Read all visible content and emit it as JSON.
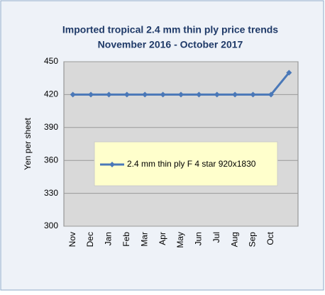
{
  "chart_data": {
    "type": "line",
    "title": "Imported tropical 2.4 mm thin ply price trends",
    "subtitle": "November 2016 - October 2017",
    "y_label": "Yen per sheet",
    "categories": [
      "Nov",
      "Dec",
      "Jan",
      "Feb",
      "Mar",
      "Apr",
      "May",
      "Jun",
      "Jul",
      "Aug",
      "Sep",
      "Oct",
      null
    ],
    "series": [
      {
        "name": "2.4 mm thin ply F 4 star 920x1830",
        "color": "#4a78b8",
        "values": [
          420,
          420,
          420,
          420,
          420,
          420,
          420,
          420,
          420,
          420,
          420,
          420,
          440
        ]
      }
    ],
    "ylim": [
      300,
      450
    ],
    "yticks": [
      300,
      330,
      360,
      390,
      420,
      450
    ],
    "grid": true,
    "legend": "center"
  }
}
